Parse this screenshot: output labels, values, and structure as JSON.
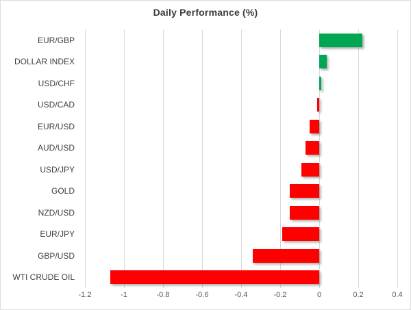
{
  "chart": {
    "title": "Daily Performance (%)"
  },
  "chart_data": {
    "type": "bar",
    "orientation": "horizontal",
    "title": "Daily Performance (%)",
    "categories": [
      "EUR/GBP",
      "DOLLAR INDEX",
      "USD/CHF",
      "USD/CAD",
      "EUR/USD",
      "AUD/USD",
      "USD/JPY",
      "GOLD",
      "NZD/USD",
      "EUR/JPY",
      "GBP/USD",
      "WTI CRUDE OIL"
    ],
    "values": [
      0.22,
      0.04,
      0.01,
      -0.01,
      -0.05,
      -0.07,
      -0.09,
      -0.15,
      -0.15,
      -0.19,
      -0.34,
      -1.07
    ],
    "xlabel": "",
    "ylabel": "",
    "xlim": [
      -1.2,
      0.4
    ],
    "xticks": [
      -1.2,
      -1,
      -0.8,
      -0.6,
      -0.4,
      -0.2,
      0,
      0.2,
      0.4
    ],
    "xtick_labels": [
      "-1.2",
      "-1",
      "-0.8",
      "-0.6",
      "-0.4",
      "-0.2",
      "0",
      "0.2",
      "0.4"
    ],
    "grid": "vertical-only",
    "legend": "none",
    "positive_color": "#00a651",
    "negative_color": "#fe0000",
    "gridline_color": "#d9d9d9"
  }
}
